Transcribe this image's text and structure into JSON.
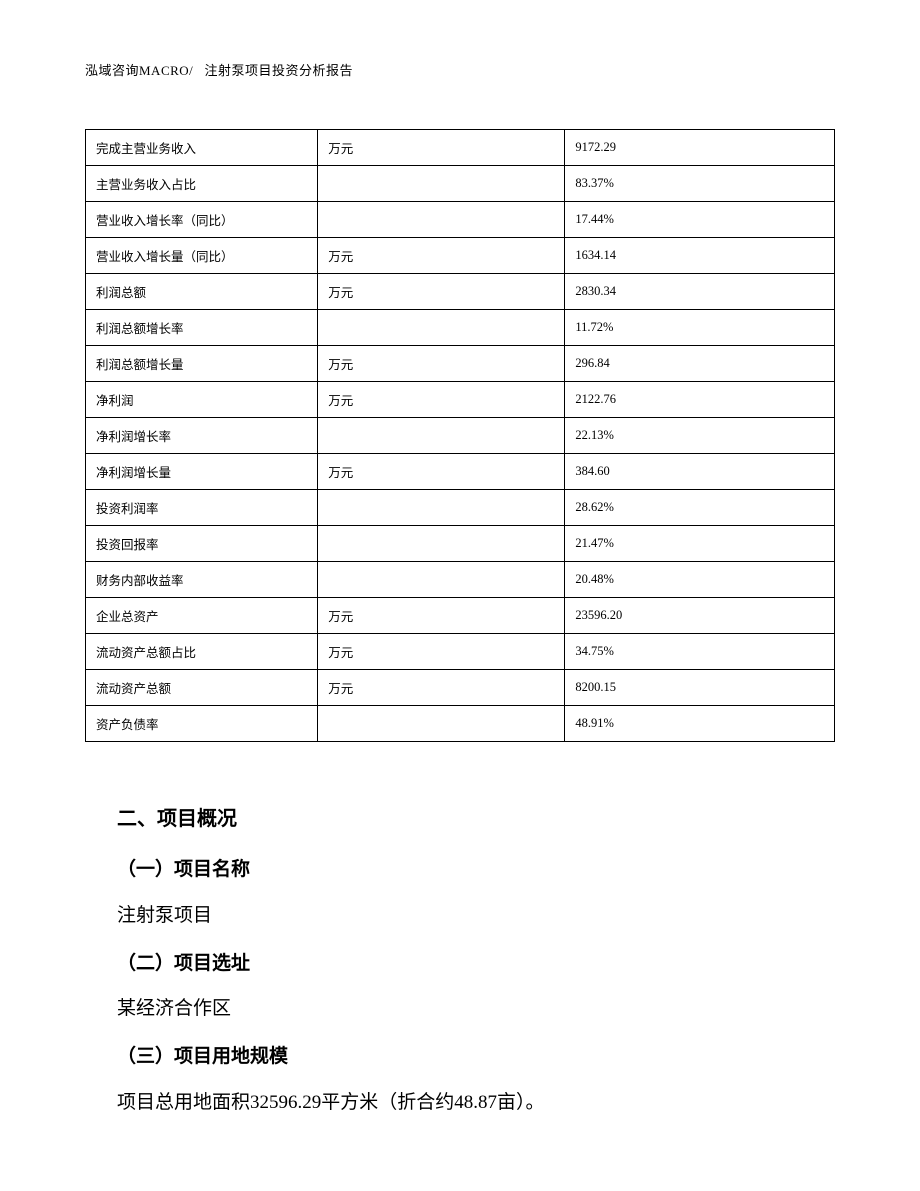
{
  "header": {
    "left": "泓域咨询MACRO/",
    "right": "注射泵项目投资分析报告"
  },
  "table": {
    "rows": [
      {
        "label": "完成主营业务收入",
        "unit": "万元",
        "value": "9172.29"
      },
      {
        "label": "主营业务收入占比",
        "unit": "",
        "value": "83.37%"
      },
      {
        "label": "营业收入增长率（同比）",
        "unit": "",
        "value": "17.44%"
      },
      {
        "label": "营业收入增长量（同比）",
        "unit": "万元",
        "value": "1634.14"
      },
      {
        "label": "利润总额",
        "unit": "万元",
        "value": "2830.34"
      },
      {
        "label": "利润总额增长率",
        "unit": "",
        "value": "11.72%"
      },
      {
        "label": "利润总额增长量",
        "unit": "万元",
        "value": "296.84"
      },
      {
        "label": "净利润",
        "unit": "万元",
        "value": "2122.76"
      },
      {
        "label": "净利润增长率",
        "unit": "",
        "value": "22.13%"
      },
      {
        "label": "净利润增长量",
        "unit": "万元",
        "value": "384.60"
      },
      {
        "label": "投资利润率",
        "unit": "",
        "value": "28.62%"
      },
      {
        "label": "投资回报率",
        "unit": "",
        "value": "21.47%"
      },
      {
        "label": "财务内部收益率",
        "unit": "",
        "value": "20.48%"
      },
      {
        "label": "企业总资产",
        "unit": "万元",
        "value": "23596.20"
      },
      {
        "label": "流动资产总额占比",
        "unit": "万元",
        "value": "34.75%"
      },
      {
        "label": "流动资产总额",
        "unit": "万元",
        "value": "8200.15"
      },
      {
        "label": "资产负债率",
        "unit": "",
        "value": "48.91%"
      }
    ]
  },
  "sections": {
    "heading": "二、项目概况",
    "sub1": {
      "title": "（一）项目名称",
      "text": "注射泵项目"
    },
    "sub2": {
      "title": "（二）项目选址",
      "text": "某经济合作区"
    },
    "sub3": {
      "title": "（三）项目用地规模",
      "text": "项目总用地面积32596.29平方米（折合约48.87亩）。"
    }
  }
}
